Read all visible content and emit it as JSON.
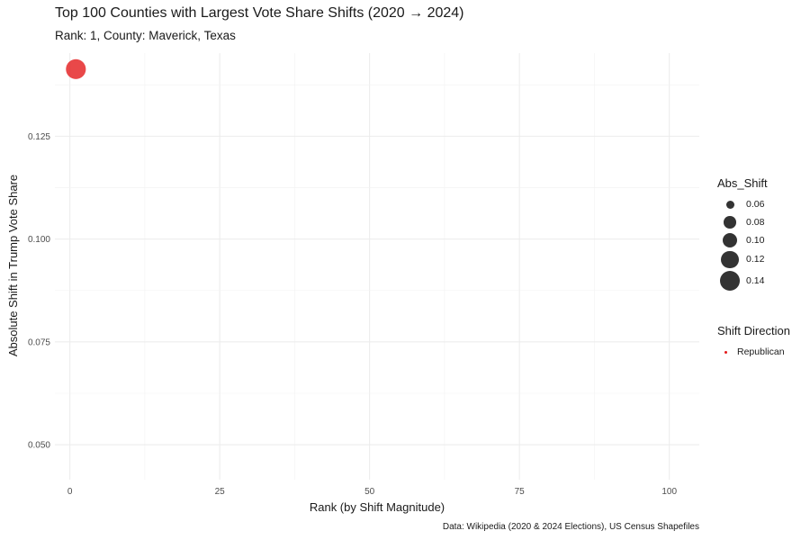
{
  "header": {
    "title": "Top 100 Counties with Largest Vote Share Shifts (2020 → 2024)",
    "subtitle": "Rank: 1, County: Maverick, Texas",
    "caption": "Data: Wikipedia (2020 & 2024 Elections), US Census Shapefiles"
  },
  "chart_data": {
    "type": "scatter",
    "title": "Top 100 Counties with Largest Vote Share Shifts (2020 → 2024)",
    "subtitle": "Rank: 1, County: Maverick, Texas",
    "xlabel": "Rank (by Shift Magnitude)",
    "ylabel": "Absolute Shift in Trump Vote Share",
    "xlim": [
      -2.5,
      105
    ],
    "ylim": [
      0.0415,
      0.1452
    ],
    "x_ticks": [
      0,
      25,
      50,
      75,
      100
    ],
    "y_ticks": [
      0.05,
      0.075,
      0.1,
      0.125
    ],
    "x_tick_labels": [
      "0",
      "25",
      "50",
      "75",
      "100"
    ],
    "y_tick_labels": [
      "0.050",
      "0.075",
      "0.100",
      "0.125"
    ],
    "grid": true,
    "series": [
      {
        "name": "Republican",
        "color": "#e41a1c",
        "points": [
          {
            "x": 1,
            "y": 0.1413,
            "size": 0.1413,
            "county": "Maverick, Texas"
          }
        ]
      }
    ],
    "size_legend": {
      "title": "Abs_Shift",
      "values": [
        0.06,
        0.08,
        0.1,
        0.12,
        0.14
      ],
      "labels": [
        "0.06",
        "0.08",
        "0.10",
        "0.12",
        "0.14"
      ]
    },
    "color_legend": {
      "title": "Shift Direction",
      "items": [
        {
          "label": "Republican",
          "color": "#e41a1c"
        }
      ]
    },
    "legend_position": "right"
  }
}
